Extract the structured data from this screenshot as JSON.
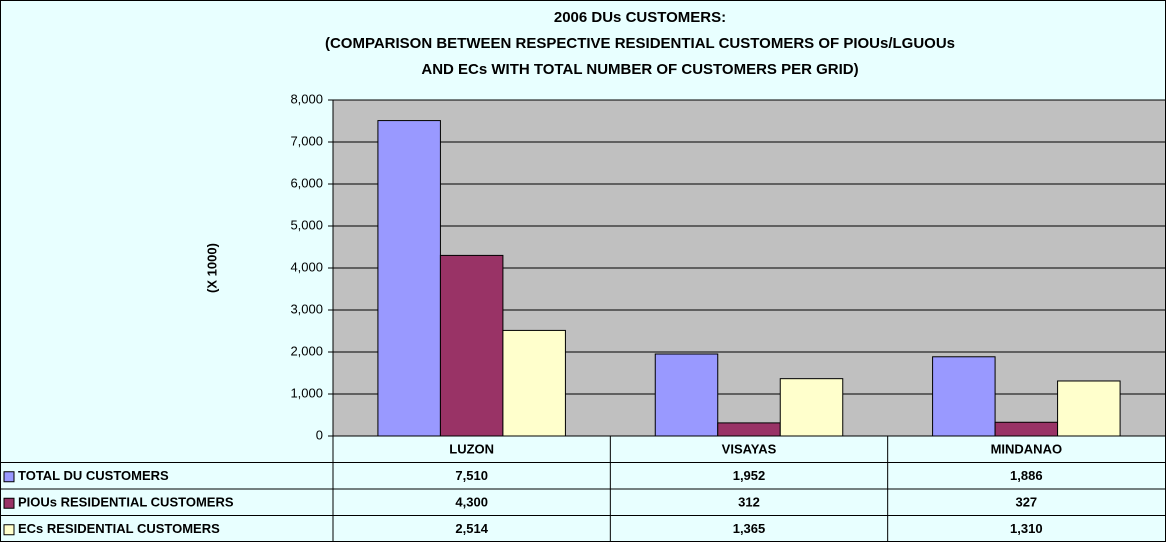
{
  "chart_data": {
    "type": "bar",
    "title": [
      "2006 DUs CUSTOMERS:",
      "(COMPARISON BETWEEN RESPECTIVE RESIDENTIAL CUSTOMERS OF PIOUs/LGUOUs",
      "AND ECs WITH TOTAL NUMBER OF CUSTOMERS PER GRID)"
    ],
    "y_label": "(X 1000)",
    "categories": [
      "LUZON",
      "VISAYAS",
      "MINDANAO"
    ],
    "series": [
      {
        "name": "TOTAL DU CUSTOMERS",
        "color": "#9999ff",
        "values": [
          7510,
          1952,
          1886
        ],
        "value_labels": [
          "7,510",
          "1,952",
          "1,886"
        ]
      },
      {
        "name": "PIOUs RESIDENTIAL CUSTOMERS",
        "color": "#993366",
        "values": [
          4300,
          312,
          327
        ],
        "value_labels": [
          "4,300",
          "312",
          "327"
        ]
      },
      {
        "name": "ECs RESIDENTIAL CUSTOMERS",
        "color": "#ffffcc",
        "values": [
          2514,
          1365,
          1310
        ],
        "value_labels": [
          "2,514",
          "1,365",
          "1,310"
        ]
      }
    ],
    "ylim": [
      0,
      8000
    ],
    "yticks": [
      0,
      {
        "value": 1000,
        "label": "1,000"
      },
      {
        "value": 2000,
        "label": "2,000"
      },
      {
        "value": 3000,
        "label": "3,000"
      },
      {
        "value": 4000,
        "label": "4,000"
      },
      {
        "value": 5000,
        "label": "5,000"
      },
      {
        "value": 6000,
        "label": "6,000"
      },
      {
        "value": 7000,
        "label": "7,000"
      },
      {
        "value": 8000,
        "label": "8,000"
      }
    ],
    "grid": true
  }
}
